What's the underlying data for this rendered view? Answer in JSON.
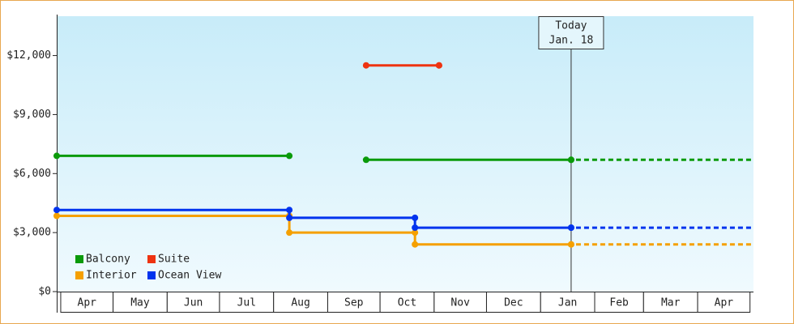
{
  "chart_data": {
    "type": "step-line",
    "categories": [
      "Apr",
      "May",
      "Jun",
      "Jul",
      "Aug",
      "Sep",
      "Oct",
      "Nov",
      "Dec",
      "Jan",
      "Feb",
      "Mar",
      "Apr"
    ],
    "category_edges": [
      0,
      30,
      61,
      91,
      122,
      153,
      183,
      214,
      244,
      275,
      306,
      334,
      365,
      395
    ],
    "xlim": [
      -2.3,
      397
    ],
    "ylim": [
      0,
      14000
    ],
    "yticks": [
      {
        "value": 0,
        "label": "$0"
      },
      {
        "value": 3000,
        "label": "$3,000"
      },
      {
        "value": 6000,
        "label": "$6,000"
      },
      {
        "value": 9000,
        "label": "$9,000"
      },
      {
        "value": 12000,
        "label": "$12,000"
      }
    ],
    "today": {
      "x": 292.5,
      "label": [
        "Today",
        "Jan. 18"
      ]
    },
    "legend": "lower left",
    "series": [
      {
        "name": "Balcony",
        "color": "#0a9a0a",
        "x": [
          -2.3,
          131,
          175,
          292.5
        ],
        "values": [
          6900,
          null,
          6700,
          6700
        ]
      },
      {
        "name": "Suite",
        "color": "#ee3311",
        "x": [
          175,
          216.8
        ],
        "values": [
          11500,
          11500
        ]
      },
      {
        "name": "Interior",
        "color": "#f5a000",
        "x": [
          -2.3,
          131,
          203,
          292.5
        ],
        "values": [
          3850,
          3000,
          2400,
          2400
        ]
      },
      {
        "name": "Ocean View",
        "color": "#0033ee",
        "x": [
          -2.3,
          131,
          203,
          292.5
        ],
        "values": [
          4150,
          3750,
          3250,
          3250
        ]
      }
    ]
  }
}
